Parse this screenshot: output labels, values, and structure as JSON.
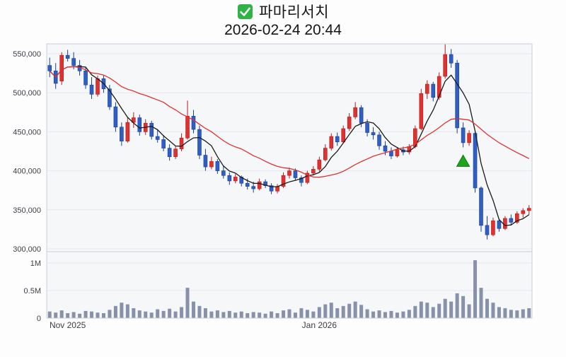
{
  "header": {
    "title": "파마리서치",
    "datetime": "2026-02-24 20:44",
    "icon": {
      "name": "green-checkbox",
      "color": "#2fb344",
      "check_color": "#ffffff"
    }
  },
  "chart_data": {
    "type": "candlestick",
    "title": "파마리서치",
    "subtitle": "2026-02-24 20:44",
    "price_axis": {
      "ticks": [
        550000,
        500000,
        450000,
        400000,
        350000,
        300000
      ],
      "tick_labels": [
        "550,000",
        "500,000",
        "450,000",
        "400,000",
        "350,000",
        "300,000"
      ],
      "range": [
        295000,
        565000
      ]
    },
    "volume_axis": {
      "ticks_millions": [
        1,
        0.5,
        0
      ],
      "tick_labels": [
        "1M",
        "0.5M",
        "0"
      ],
      "max_millions": 1.15
    },
    "x_axis": {
      "tick_labels": [
        {
          "index": 3,
          "label": "Nov 2025"
        },
        {
          "index": 45,
          "label": "Jan 2026"
        }
      ]
    },
    "moving_averages": [
      {
        "name": "ma-short",
        "period": 5,
        "color": "#1a1a1a"
      },
      {
        "name": "ma-long",
        "period": 20,
        "color": "#e03131"
      }
    ],
    "marker": {
      "type": "up-triangle",
      "index": 69,
      "price": 412000,
      "color": "#1ea51e",
      "stroke": "#0c7a0c"
    },
    "colors": {
      "up": "#e03131",
      "up_stroke": "#b31f1f",
      "down": "#2f5fc4",
      "down_stroke": "#1c3f96",
      "volume_bar": "#8792a8",
      "grid": "#e4e7ee",
      "panel_bg": "#f6f7f9",
      "panel_border": "#c9ced8",
      "axis_text": "#3c3f45"
    },
    "candles_columns": [
      "open",
      "high",
      "low",
      "close",
      "volume_millions"
    ],
    "candles": [
      [
        535000,
        545000,
        520000,
        528000,
        0.12
      ],
      [
        528000,
        538000,
        505000,
        512000,
        0.1
      ],
      [
        515000,
        552000,
        510000,
        548000,
        0.14
      ],
      [
        548000,
        555000,
        540000,
        544000,
        0.09
      ],
      [
        544000,
        552000,
        530000,
        535000,
        0.11
      ],
      [
        535000,
        542000,
        522000,
        528000,
        0.08
      ],
      [
        528000,
        532000,
        505000,
        510000,
        0.13
      ],
      [
        510000,
        520000,
        492000,
        498000,
        0.12
      ],
      [
        498000,
        522000,
        495000,
        518000,
        0.1
      ],
      [
        518000,
        522000,
        500000,
        505000,
        0.09
      ],
      [
        505000,
        510000,
        478000,
        482000,
        0.15
      ],
      [
        482000,
        488000,
        450000,
        456000,
        0.22
      ],
      [
        456000,
        462000,
        432000,
        438000,
        0.28
      ],
      [
        438000,
        468000,
        436000,
        462000,
        0.25
      ],
      [
        462000,
        475000,
        455000,
        468000,
        0.18
      ],
      [
        468000,
        472000,
        445000,
        450000,
        0.14
      ],
      [
        450000,
        466000,
        446000,
        461000,
        0.12
      ],
      [
        461000,
        464000,
        440000,
        444000,
        0.1
      ],
      [
        444000,
        452000,
        436000,
        440000,
        0.16
      ],
      [
        440000,
        446000,
        425000,
        429000,
        0.13
      ],
      [
        429000,
        434000,
        413000,
        418000,
        0.17
      ],
      [
        418000,
        432000,
        415000,
        428000,
        0.12
      ],
      [
        428000,
        448000,
        425000,
        442000,
        0.2
      ],
      [
        442000,
        490000,
        440000,
        470000,
        0.55
      ],
      [
        470000,
        478000,
        448000,
        453000,
        0.3
      ],
      [
        453000,
        458000,
        415000,
        420000,
        0.22
      ],
      [
        420000,
        428000,
        400000,
        405000,
        0.18
      ],
      [
        405000,
        418000,
        402000,
        412000,
        0.12
      ],
      [
        412000,
        415000,
        396000,
        400000,
        0.14
      ],
      [
        400000,
        406000,
        390000,
        394000,
        0.11
      ],
      [
        394000,
        398000,
        382000,
        387000,
        0.13
      ],
      [
        387000,
        396000,
        384000,
        392000,
        0.1
      ],
      [
        392000,
        394000,
        380000,
        384000,
        0.12
      ],
      [
        384000,
        390000,
        376000,
        380000,
        0.09
      ],
      [
        380000,
        386000,
        372000,
        377000,
        0.11
      ],
      [
        377000,
        390000,
        375000,
        386000,
        0.1
      ],
      [
        386000,
        389000,
        378000,
        381000,
        0.08
      ],
      [
        381000,
        384000,
        370000,
        374000,
        0.12
      ],
      [
        374000,
        383000,
        371000,
        380000,
        0.09
      ],
      [
        380000,
        398000,
        378000,
        394000,
        0.14
      ],
      [
        394000,
        404000,
        390000,
        400000,
        0.16
      ],
      [
        400000,
        403000,
        388000,
        391000,
        0.1
      ],
      [
        391000,
        394000,
        380000,
        385000,
        0.18
      ],
      [
        385000,
        400000,
        383000,
        397000,
        0.15
      ],
      [
        397000,
        406000,
        394000,
        402000,
        0.12
      ],
      [
        402000,
        418000,
        399000,
        414000,
        0.2
      ],
      [
        414000,
        434000,
        412000,
        429000,
        0.25
      ],
      [
        429000,
        448000,
        426000,
        444000,
        0.28
      ],
      [
        444000,
        449000,
        432000,
        437000,
        0.18
      ],
      [
        437000,
        458000,
        435000,
        454000,
        0.22
      ],
      [
        454000,
        474000,
        451000,
        469000,
        0.26
      ],
      [
        469000,
        488000,
        466000,
        481000,
        0.3
      ],
      [
        481000,
        484000,
        456000,
        461000,
        0.24
      ],
      [
        461000,
        466000,
        444000,
        449000,
        0.16
      ],
      [
        449000,
        456000,
        440000,
        446000,
        0.12
      ],
      [
        446000,
        450000,
        427000,
        432000,
        0.14
      ],
      [
        432000,
        438000,
        420000,
        425000,
        0.11
      ],
      [
        425000,
        430000,
        415000,
        419000,
        0.13
      ],
      [
        419000,
        430000,
        417000,
        427000,
        0.1
      ],
      [
        427000,
        431000,
        420000,
        424000,
        0.12
      ],
      [
        424000,
        434000,
        421000,
        431000,
        0.15
      ],
      [
        431000,
        458000,
        429000,
        454000,
        0.22
      ],
      [
        454000,
        505000,
        452000,
        499000,
        0.3
      ],
      [
        499000,
        516000,
        492000,
        511000,
        0.28
      ],
      [
        511000,
        514000,
        489000,
        494000,
        0.2
      ],
      [
        494000,
        526000,
        491000,
        521000,
        0.26
      ],
      [
        521000,
        562000,
        518000,
        549000,
        0.35
      ],
      [
        549000,
        556000,
        532000,
        538000,
        0.3
      ],
      [
        538000,
        542000,
        448000,
        455000,
        0.45
      ],
      [
        455000,
        462000,
        430000,
        436000,
        0.4
      ],
      [
        436000,
        452000,
        432000,
        448000,
        0.25
      ],
      [
        448000,
        450000,
        372000,
        378000,
        1.05
      ],
      [
        378000,
        380000,
        322000,
        330000,
        0.55
      ],
      [
        330000,
        342000,
        312000,
        318000,
        0.35
      ],
      [
        318000,
        340000,
        316000,
        336000,
        0.28
      ],
      [
        336000,
        338000,
        322000,
        326000,
        0.2
      ],
      [
        326000,
        342000,
        324000,
        339000,
        0.18
      ],
      [
        339000,
        344000,
        330000,
        334000,
        0.15
      ],
      [
        334000,
        348000,
        332000,
        345000,
        0.14
      ],
      [
        345000,
        352000,
        340000,
        349000,
        0.16
      ],
      [
        349000,
        356000,
        344000,
        352000,
        0.18
      ]
    ]
  }
}
